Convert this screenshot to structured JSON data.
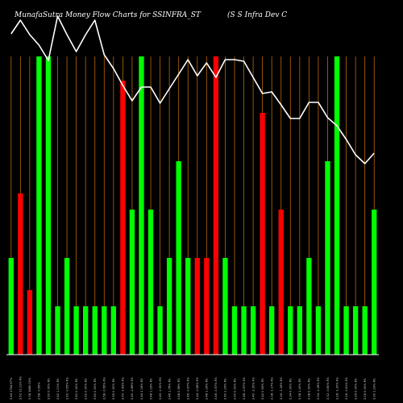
{
  "chart_data": {
    "type": "bar",
    "title": "MunafaSutra Money Flow Charts for SSINFRA_ST",
    "subtitle": "(S S Infra Dev C",
    "colors": {
      "background": "#000000",
      "up": "#00ff00",
      "down": "#ff0000",
      "line": "#ffffff",
      "gridline": "#b8690b",
      "axis": "#ffffff"
    },
    "grid": true,
    "ylim": [
      0,
      370
    ],
    "line_ylim": [
      0,
      370
    ],
    "categories": [
      "3.44 1764.67%",
      "3.52 11.11% RS",
      "3.38 1880.00%",
      "3.58 -0.56%",
      "3.60 0.00% RS",
      "3.62 1.11% RS",
      "3.60 -0.55% RS",
      "3.62 0.00% RS",
      "3.62 0.00% RS",
      "3.60 0.00% RS",
      "3.58 -0.56% RS",
      "3.56 0.00% RS",
      "3.50 -1.69% RS",
      "3.40 -2.86% RS",
      "3.44 1.18% RS",
      "3.48 1.16% RS",
      "3.40 -2.30% RS",
      "3.46 1.76% RS",
      "3.48 0.58% RS",
      "3.46 -0.57% RS",
      "3.44 -0.58% RS",
      "3.48 1.16% RS",
      "3.46 -0.57% RS",
      "3.50 1.16% RS",
      "3.50 0.00% RS",
      "3.48 -0.57% RS",
      "3.40 -2.30% RS",
      "3.42 0.59% RS",
      "3.38 -1.17% RS",
      "3.34 -1.18% RS",
      "3.34 0.00% RS",
      "3.38 1.20% RS",
      "3.38 0.00% RS",
      "3.34 -1.18% RS",
      "3.32 -0.60% RS",
      "3.28 -1.20% RS",
      "3.26 -0.61% RS",
      "3.26 0.00% RS",
      "3.26 0.00% RS",
      "3.30 1.23% RS"
    ],
    "values": [
      120,
      200,
      80,
      370,
      370,
      60,
      120,
      60,
      60,
      60,
      60,
      60,
      340,
      180,
      370,
      180,
      60,
      120,
      240,
      120,
      120,
      120,
      370,
      120,
      60,
      60,
      60,
      300,
      60,
      180,
      60,
      60,
      120,
      60,
      240,
      370,
      60,
      60,
      60,
      180
    ],
    "directions": [
      "up",
      "down",
      "down",
      "up",
      "up",
      "up",
      "up",
      "up",
      "up",
      "up",
      "up",
      "up",
      "down",
      "up",
      "up",
      "up",
      "up",
      "up",
      "up",
      "up",
      "down",
      "down",
      "down",
      "up",
      "up",
      "up",
      "up",
      "down",
      "up",
      "down",
      "up",
      "up",
      "up",
      "up",
      "up",
      "up",
      "up",
      "up",
      "up",
      "up"
    ],
    "price_line": [
      398,
      415,
      397,
      384,
      365,
      420,
      397,
      376,
      397,
      415,
      372,
      355,
      334,
      315,
      332,
      332,
      312,
      330,
      348,
      366,
      346,
      362,
      344,
      366,
      366,
      364,
      344,
      324,
      326,
      310,
      293,
      293,
      313,
      313,
      294,
      284,
      267,
      248,
      237,
      250
    ]
  }
}
